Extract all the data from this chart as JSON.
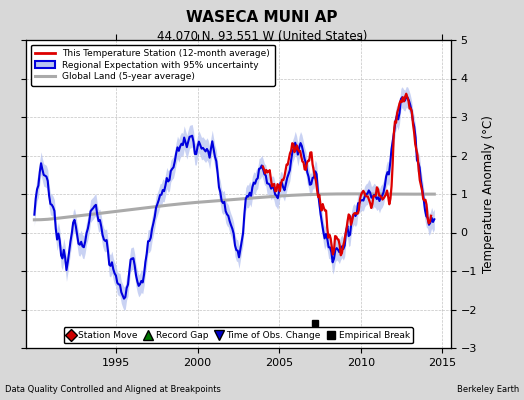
{
  "title": "WASECA MUNI AP",
  "subtitle": "44.070 N, 93.551 W (United States)",
  "xlabel_left": "Data Quality Controlled and Aligned at Breakpoints",
  "xlabel_right": "Berkeley Earth",
  "ylabel": "Temperature Anomaly (°C)",
  "xlim": [
    1989.5,
    2015.5
  ],
  "ylim": [
    -3.0,
    5.0
  ],
  "yticks": [
    -3,
    -2,
    -1,
    0,
    1,
    2,
    3,
    4,
    5
  ],
  "xticks": [
    1995,
    2000,
    2005,
    2010,
    2015
  ],
  "bg_color": "#d8d8d8",
  "plot_bg_color": "#ffffff",
  "grid_color": "#aaaaaa",
  "regional_band_color": "#b8c4f0",
  "regional_line_color": "#0000dd",
  "station_line_color": "#dd0000",
  "global_line_color": "#aaaaaa",
  "empirical_break_x": 2007.2,
  "empirical_break_y": -2.35,
  "legend_entries": [
    {
      "label": "This Temperature Station (12-month average)",
      "color": "#dd0000",
      "lw": 2.0
    },
    {
      "label": "Regional Expectation with 95% uncertainty",
      "color": "#0000dd",
      "lw": 1.8
    },
    {
      "label": "Global Land (5-year average)",
      "color": "#aaaaaa",
      "lw": 2.2
    }
  ],
  "bottom_legend": [
    {
      "label": "Station Move",
      "marker": "D",
      "color": "#cc0000"
    },
    {
      "label": "Record Gap",
      "marker": "^",
      "color": "#007700"
    },
    {
      "label": "Time of Obs. Change",
      "marker": "v",
      "color": "#0000cc"
    },
    {
      "label": "Empirical Break",
      "marker": "s",
      "color": "#000000"
    }
  ],
  "regional_keypoints": [
    [
      1990.0,
      0.5
    ],
    [
      1990.5,
      1.5
    ],
    [
      1991.0,
      0.8
    ],
    [
      1991.5,
      -0.2
    ],
    [
      1992.0,
      -0.8
    ],
    [
      1992.5,
      0.3
    ],
    [
      1993.0,
      -0.3
    ],
    [
      1993.5,
      0.8
    ],
    [
      1994.0,
      0.2
    ],
    [
      1994.5,
      -0.5
    ],
    [
      1995.0,
      -1.2
    ],
    [
      1995.5,
      -1.5
    ],
    [
      1996.0,
      -0.8
    ],
    [
      1996.5,
      -1.3
    ],
    [
      1997.0,
      -0.4
    ],
    [
      1997.5,
      0.5
    ],
    [
      1998.0,
      1.2
    ],
    [
      1998.5,
      1.8
    ],
    [
      1999.0,
      2.2
    ],
    [
      1999.5,
      2.5
    ],
    [
      2000.0,
      2.3
    ],
    [
      2000.5,
      2.2
    ],
    [
      2001.0,
      2.0
    ],
    [
      2001.5,
      0.8
    ],
    [
      2002.0,
      0.3
    ],
    [
      2002.5,
      -0.5
    ],
    [
      2003.0,
      0.8
    ],
    [
      2003.5,
      1.2
    ],
    [
      2004.0,
      1.5
    ],
    [
      2004.5,
      1.3
    ],
    [
      2005.0,
      1.0
    ],
    [
      2005.5,
      1.5
    ],
    [
      2006.0,
      2.2
    ],
    [
      2006.5,
      2.0
    ],
    [
      2007.0,
      1.5
    ],
    [
      2007.3,
      1.3
    ],
    [
      2007.5,
      0.5
    ],
    [
      2008.0,
      -0.3
    ],
    [
      2008.5,
      -0.6
    ],
    [
      2009.0,
      -0.1
    ],
    [
      2009.5,
      0.4
    ],
    [
      2010.0,
      0.8
    ],
    [
      2010.5,
      1.0
    ],
    [
      2011.0,
      1.0
    ],
    [
      2011.5,
      1.2
    ],
    [
      2012.0,
      2.5
    ],
    [
      2012.5,
      3.5
    ],
    [
      2013.0,
      3.4
    ],
    [
      2013.5,
      2.0
    ],
    [
      2014.0,
      0.5
    ],
    [
      2014.5,
      0.3
    ]
  ],
  "station_keypoints": [
    [
      2004.0,
      1.6
    ],
    [
      2004.5,
      1.4
    ],
    [
      2005.0,
      1.2
    ],
    [
      2005.5,
      1.8
    ],
    [
      2006.0,
      2.2
    ],
    [
      2006.3,
      2.0
    ],
    [
      2006.6,
      1.6
    ],
    [
      2006.9,
      2.1
    ],
    [
      2007.2,
      1.5
    ],
    [
      2007.5,
      0.8
    ],
    [
      2007.8,
      0.5
    ],
    [
      2008.0,
      0.0
    ],
    [
      2008.3,
      -0.3
    ],
    [
      2008.6,
      -0.2
    ],
    [
      2008.9,
      -0.5
    ],
    [
      2009.0,
      -0.1
    ],
    [
      2009.3,
      0.3
    ],
    [
      2009.6,
      0.5
    ],
    [
      2009.9,
      0.7
    ],
    [
      2010.0,
      0.9
    ],
    [
      2010.3,
      1.0
    ],
    [
      2010.6,
      0.8
    ],
    [
      2010.9,
      1.0
    ],
    [
      2011.0,
      1.1
    ],
    [
      2011.3,
      0.8
    ],
    [
      2011.6,
      1.0
    ],
    [
      2011.9,
      1.3
    ],
    [
      2012.0,
      2.3
    ],
    [
      2012.3,
      3.2
    ],
    [
      2012.6,
      3.5
    ],
    [
      2012.9,
      3.4
    ],
    [
      2013.0,
      3.3
    ],
    [
      2013.3,
      2.5
    ],
    [
      2013.6,
      1.5
    ],
    [
      2013.9,
      0.8
    ],
    [
      2014.0,
      0.6
    ],
    [
      2014.3,
      0.4
    ]
  ],
  "global_keypoints": [
    [
      1990.0,
      0.3
    ],
    [
      1993.0,
      0.45
    ],
    [
      1996.0,
      0.6
    ],
    [
      1999.0,
      0.75
    ],
    [
      2002.0,
      0.85
    ],
    [
      2005.0,
      0.95
    ],
    [
      2008.0,
      1.0
    ],
    [
      2011.0,
      1.0
    ],
    [
      2014.5,
      1.0
    ]
  ]
}
